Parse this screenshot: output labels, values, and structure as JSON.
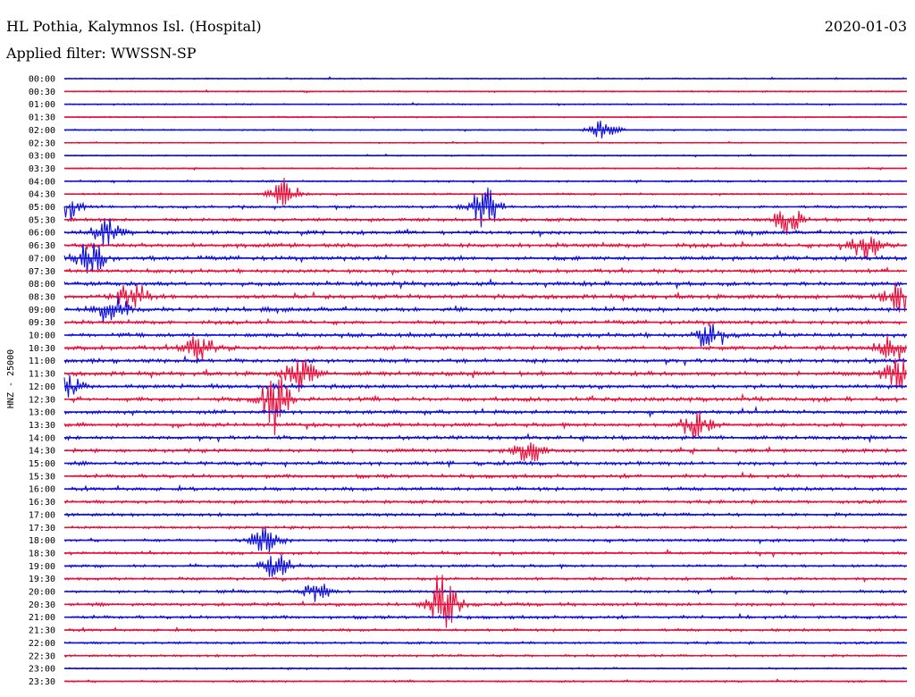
{
  "header": {
    "station": "HL Pothia, Kalymnos Isl. (Hospital)",
    "date": "2020-01-03",
    "filter": "Applied filter: WWSSN-SP"
  },
  "chart_data": {
    "type": "line",
    "title": "HL Pothia, Kalymnos Isl. (Hospital)",
    "ylabel": "HNZ - 25000",
    "row_labels": [
      "00:00",
      "00:30",
      "01:00",
      "01:30",
      "02:00",
      "02:30",
      "03:00",
      "03:30",
      "04:00",
      "04:30",
      "05:00",
      "05:30",
      "06:00",
      "06:30",
      "07:00",
      "07:30",
      "08:00",
      "08:30",
      "09:00",
      "09:30",
      "10:00",
      "10:30",
      "11:00",
      "11:30",
      "12:00",
      "12:30",
      "13:00",
      "13:30",
      "14:00",
      "14:30",
      "15:00",
      "15:30",
      "16:00",
      "16:30",
      "17:00",
      "17:30",
      "18:00",
      "18:30",
      "19:00",
      "19:30",
      "20:00",
      "20:30",
      "21:00",
      "21:30",
      "22:00",
      "22:30",
      "23:00",
      "23:30"
    ],
    "colors": [
      "#1010d8",
      "#e8103c"
    ],
    "noise_level": [
      0.3,
      0.3,
      0.3,
      0.3,
      0.3,
      0.25,
      0.3,
      0.3,
      0.4,
      0.4,
      0.6,
      0.7,
      0.8,
      0.9,
      0.9,
      0.8,
      0.9,
      0.9,
      0.9,
      0.8,
      0.9,
      0.9,
      0.9,
      0.9,
      0.9,
      0.9,
      0.8,
      0.8,
      0.8,
      0.8,
      0.8,
      0.8,
      0.8,
      0.7,
      0.7,
      0.6,
      0.6,
      0.6,
      0.6,
      0.6,
      0.6,
      0.7,
      0.7,
      0.6,
      0.5,
      0.5,
      0.4,
      0.4
    ],
    "events": [
      {
        "row": 4,
        "t": 0.64,
        "amp": 1.2
      },
      {
        "row": 9,
        "t": 0.26,
        "amp": 2.2
      },
      {
        "row": 10,
        "t": 0.0,
        "amp": 2.5
      },
      {
        "row": 10,
        "t": 0.5,
        "amp": 3.0
      },
      {
        "row": 11,
        "t": 0.86,
        "amp": 2.0
      },
      {
        "row": 12,
        "t": 0.05,
        "amp": 2.2
      },
      {
        "row": 13,
        "t": 0.95,
        "amp": 2.0
      },
      {
        "row": 14,
        "t": 0.03,
        "amp": 3.0
      },
      {
        "row": 17,
        "t": 0.08,
        "amp": 2.5
      },
      {
        "row": 17,
        "t": 0.99,
        "amp": 2.5
      },
      {
        "row": 18,
        "t": 0.06,
        "amp": 2.2
      },
      {
        "row": 20,
        "t": 0.77,
        "amp": 2.5
      },
      {
        "row": 21,
        "t": 0.16,
        "amp": 2.0
      },
      {
        "row": 21,
        "t": 0.98,
        "amp": 2.0
      },
      {
        "row": 23,
        "t": 0.28,
        "amp": 2.5
      },
      {
        "row": 23,
        "t": 0.99,
        "amp": 3.0
      },
      {
        "row": 24,
        "t": 0.0,
        "amp": 2.5
      },
      {
        "row": 25,
        "t": 0.25,
        "amp": 4.5
      },
      {
        "row": 27,
        "t": 0.75,
        "amp": 2.0
      },
      {
        "row": 29,
        "t": 0.55,
        "amp": 2.0
      },
      {
        "row": 36,
        "t": 0.24,
        "amp": 2.0
      },
      {
        "row": 38,
        "t": 0.25,
        "amp": 1.8
      },
      {
        "row": 40,
        "t": 0.3,
        "amp": 1.6
      },
      {
        "row": 41,
        "t": 0.45,
        "amp": 4.5
      }
    ]
  }
}
